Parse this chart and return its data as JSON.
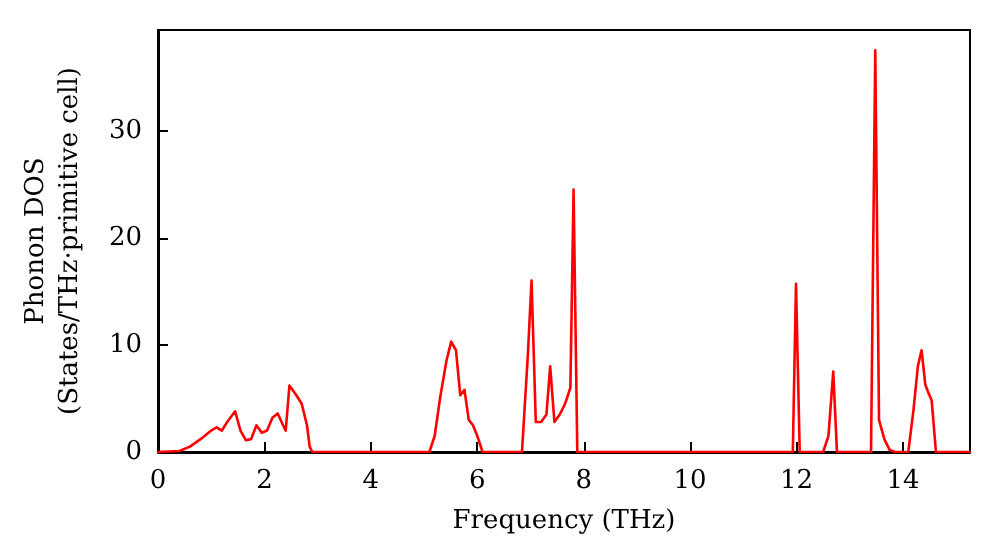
{
  "chart_data": {
    "type": "line",
    "xlabel": "Frequency (THz)",
    "ylabel": "Phonon DOS\n(States/THz·primitive cell)",
    "xlim": [
      0,
      15.26
    ],
    "ylim": [
      0,
      39.4
    ],
    "xticks": [
      0,
      2,
      4,
      6,
      8,
      10,
      12,
      14
    ],
    "yticks": [
      0,
      10,
      20,
      30
    ],
    "marker": "none",
    "line_style": "solid",
    "series": [
      {
        "color": "#ff0000",
        "x": [
          0,
          0.4,
          0.6,
          0.8,
          1.0,
          1.1,
          1.2,
          1.3,
          1.45,
          1.55,
          1.65,
          1.75,
          1.85,
          1.95,
          2.05,
          2.15,
          2.25,
          2.35,
          2.4,
          2.47,
          2.6,
          2.7,
          2.8,
          2.85,
          2.9,
          5.1,
          5.2,
          5.3,
          5.42,
          5.51,
          5.6,
          5.68,
          5.76,
          5.84,
          5.92,
          6.0,
          6.1,
          6.84,
          6.95,
          7.02,
          7.1,
          7.2,
          7.3,
          7.37,
          7.45,
          7.55,
          7.65,
          7.75,
          7.81,
          7.88,
          11.93,
          11.99,
          12.06,
          12.5,
          12.6,
          12.69,
          12.76,
          13.4,
          13.48,
          13.55,
          13.65,
          13.75,
          13.85,
          14.1,
          14.2,
          14.28,
          14.35,
          14.42,
          14.48,
          14.54,
          14.62,
          15.26
        ],
        "values": [
          0,
          0.1,
          0.5,
          1.2,
          2.0,
          2.3,
          2.0,
          2.8,
          3.8,
          2.0,
          1.1,
          1.2,
          2.5,
          1.8,
          2.0,
          3.2,
          3.6,
          2.5,
          2.0,
          6.2,
          5.3,
          4.5,
          2.5,
          0.5,
          0,
          0,
          1.5,
          5.0,
          8.5,
          10.3,
          9.5,
          5.3,
          5.8,
          3.0,
          2.5,
          1.5,
          0,
          0,
          9,
          16,
          2.8,
          2.8,
          3.5,
          8,
          2.8,
          3.5,
          4.5,
          6,
          24.5,
          0,
          0,
          15.7,
          0,
          0,
          1.5,
          7.5,
          0,
          0,
          37.5,
          3,
          1.2,
          0.2,
          0,
          0,
          4,
          8,
          9.5,
          6.3,
          5.5,
          4.8,
          0,
          0
        ]
      }
    ]
  }
}
